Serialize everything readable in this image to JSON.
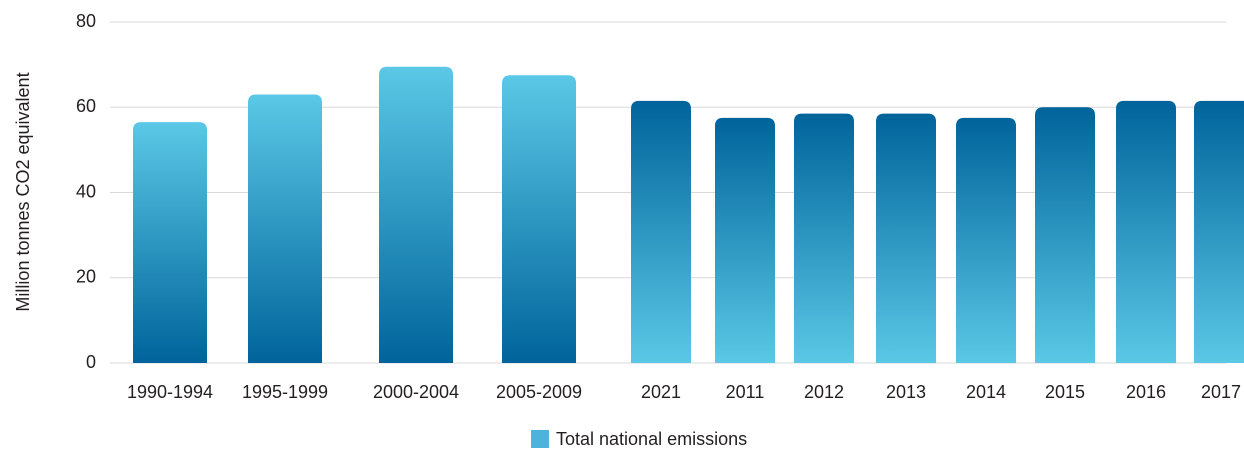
{
  "chart_data": {
    "type": "bar",
    "categories": [
      "1990-1994",
      "1995-1999",
      "2000-2004",
      "2005-2009",
      "2021",
      "2011",
      "2012",
      "2013",
      "2014",
      "2015",
      "2016",
      "2017"
    ],
    "series": [
      {
        "name": "Total national emissions",
        "values": [
          56.5,
          63,
          69.5,
          67.5,
          61.5,
          57.5,
          58.5,
          58.5,
          57.5,
          60,
          61.5,
          61.5
        ]
      }
    ],
    "ylabel": "Million tonnes CO2 equivalent",
    "xlabel": "",
    "ylim": [
      0,
      80
    ],
    "yticks": [
      "0",
      "20",
      "40",
      "60",
      "80"
    ],
    "grid": true,
    "legend_position": "bottom-center",
    "colors": {
      "legend_swatch": "#4db3dc",
      "period_bar_top": "#5bc8e6",
      "period_bar_bottom": "#00649b",
      "year_bar_top": "#00649b",
      "year_bar_bottom": "#5bc8e6"
    }
  }
}
